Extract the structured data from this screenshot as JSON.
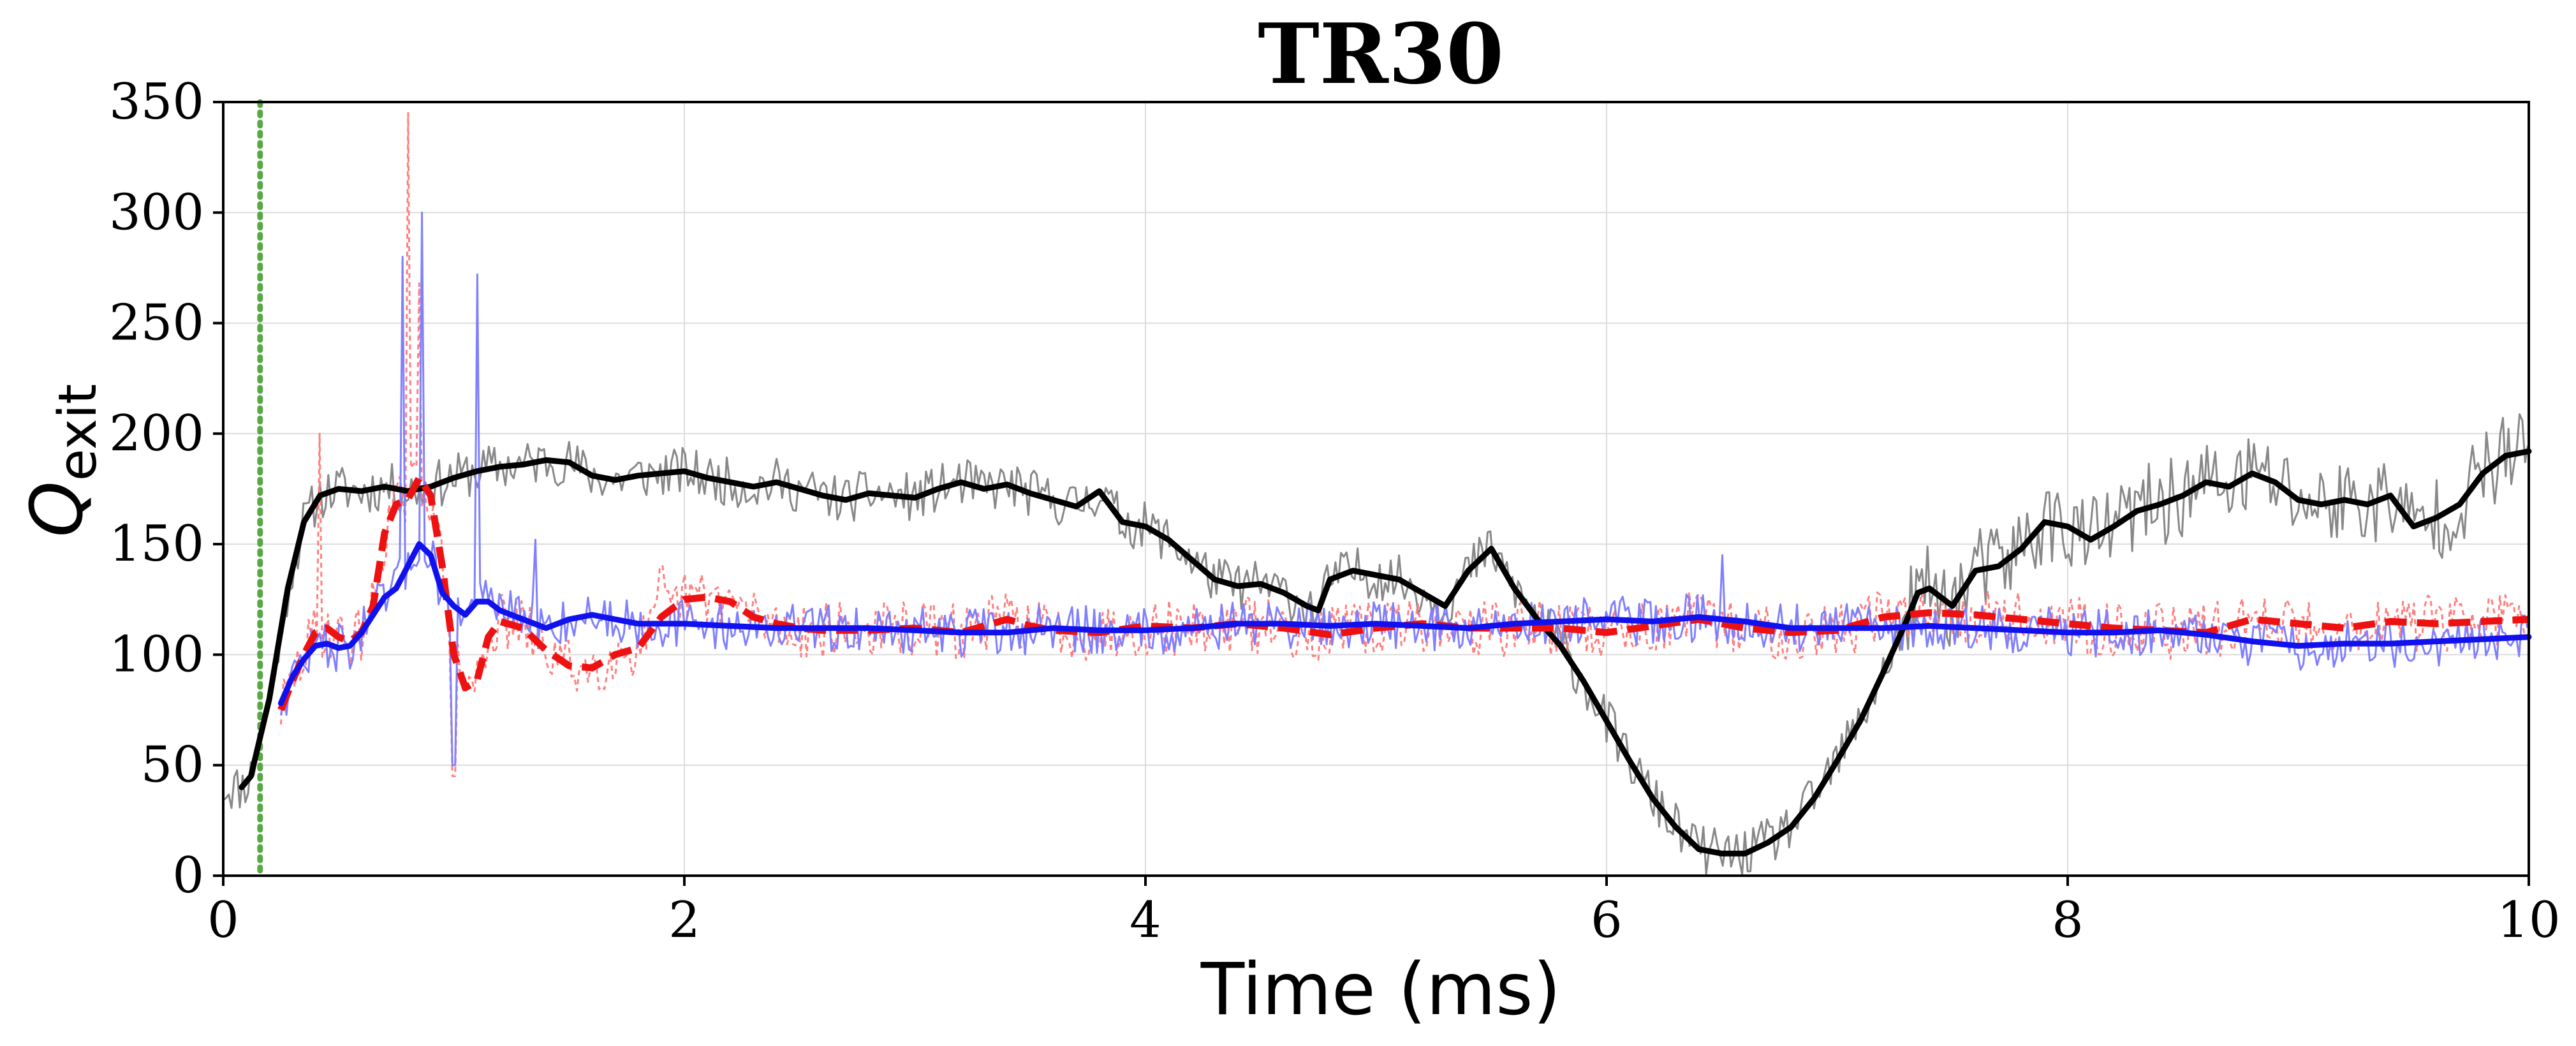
{
  "chart_data": {
    "type": "line",
    "title": "TR30",
    "xlabel": "Time (ms)",
    "ylabel_main": "Q",
    "ylabel_sub": "exit",
    "xlim": [
      0,
      10
    ],
    "ylim": [
      0,
      350
    ],
    "xticks": [
      0,
      2,
      4,
      6,
      8,
      10
    ],
    "yticks": [
      0,
      50,
      100,
      150,
      200,
      250,
      300,
      350
    ],
    "xtick_labels": [
      "0",
      "2",
      "4",
      "6",
      "8",
      "10"
    ],
    "ytick_labels": [
      "0",
      "50",
      "100",
      "150",
      "200",
      "250",
      "300",
      "350"
    ],
    "grid": true,
    "reference_line": {
      "x": 0.16,
      "color": "#5aa845",
      "style": "dotted"
    },
    "series": [
      {
        "color": "#000000",
        "style": "solid",
        "points": [
          [
            0.08,
            40
          ],
          [
            0.12,
            45
          ],
          [
            0.2,
            80
          ],
          [
            0.28,
            130
          ],
          [
            0.35,
            160
          ],
          [
            0.42,
            172
          ],
          [
            0.5,
            175
          ],
          [
            0.6,
            174
          ],
          [
            0.7,
            176
          ],
          [
            0.8,
            174
          ],
          [
            0.9,
            176
          ],
          [
            1.0,
            180
          ],
          [
            1.1,
            183
          ],
          [
            1.2,
            185
          ],
          [
            1.3,
            186
          ],
          [
            1.4,
            188
          ],
          [
            1.5,
            187
          ],
          [
            1.6,
            181
          ],
          [
            1.7,
            179
          ],
          [
            1.8,
            181
          ],
          [
            1.9,
            182
          ],
          [
            2.0,
            183
          ],
          [
            2.1,
            180
          ],
          [
            2.2,
            178
          ],
          [
            2.3,
            176
          ],
          [
            2.4,
            178
          ],
          [
            2.5,
            175
          ],
          [
            2.6,
            172
          ],
          [
            2.7,
            170
          ],
          [
            2.8,
            173
          ],
          [
            2.9,
            172
          ],
          [
            3.0,
            171
          ],
          [
            3.1,
            175
          ],
          [
            3.2,
            178
          ],
          [
            3.3,
            175
          ],
          [
            3.4,
            177
          ],
          [
            3.5,
            173
          ],
          [
            3.6,
            170
          ],
          [
            3.7,
            167
          ],
          [
            3.8,
            174
          ],
          [
            3.9,
            160
          ],
          [
            4.0,
            158
          ],
          [
            4.1,
            152
          ],
          [
            4.2,
            143
          ],
          [
            4.3,
            134
          ],
          [
            4.4,
            131
          ],
          [
            4.5,
            132
          ],
          [
            4.6,
            128
          ],
          [
            4.7,
            122
          ],
          [
            4.75,
            120
          ],
          [
            4.8,
            134
          ],
          [
            4.9,
            138
          ],
          [
            5.0,
            136
          ],
          [
            5.1,
            134
          ],
          [
            5.2,
            128
          ],
          [
            5.3,
            122
          ],
          [
            5.4,
            138
          ],
          [
            5.5,
            148
          ],
          [
            5.6,
            130
          ],
          [
            5.7,
            116
          ],
          [
            5.8,
            104
          ],
          [
            5.9,
            88
          ],
          [
            6.0,
            70
          ],
          [
            6.1,
            52
          ],
          [
            6.2,
            35
          ],
          [
            6.3,
            22
          ],
          [
            6.4,
            12
          ],
          [
            6.5,
            10
          ],
          [
            6.6,
            10
          ],
          [
            6.7,
            15
          ],
          [
            6.8,
            22
          ],
          [
            6.9,
            35
          ],
          [
            7.0,
            52
          ],
          [
            7.1,
            70
          ],
          [
            7.2,
            92
          ],
          [
            7.3,
            115
          ],
          [
            7.35,
            128
          ],
          [
            7.4,
            130
          ],
          [
            7.5,
            122
          ],
          [
            7.6,
            138
          ],
          [
            7.7,
            140
          ],
          [
            7.8,
            148
          ],
          [
            7.9,
            160
          ],
          [
            8.0,
            158
          ],
          [
            8.1,
            152
          ],
          [
            8.2,
            158
          ],
          [
            8.3,
            165
          ],
          [
            8.4,
            168
          ],
          [
            8.5,
            172
          ],
          [
            8.6,
            178
          ],
          [
            8.7,
            176
          ],
          [
            8.8,
            182
          ],
          [
            8.9,
            178
          ],
          [
            9.0,
            170
          ],
          [
            9.1,
            168
          ],
          [
            9.2,
            170
          ],
          [
            9.3,
            168
          ],
          [
            9.4,
            172
          ],
          [
            9.5,
            158
          ],
          [
            9.6,
            162
          ],
          [
            9.7,
            168
          ],
          [
            9.8,
            182
          ],
          [
            9.9,
            190
          ],
          [
            10.0,
            192
          ]
        ]
      },
      {
        "color": "#ee1111",
        "style": "dashed",
        "points": [
          [
            0.25,
            75
          ],
          [
            0.3,
            88
          ],
          [
            0.35,
            100
          ],
          [
            0.4,
            110
          ],
          [
            0.45,
            112
          ],
          [
            0.5,
            108
          ],
          [
            0.55,
            106
          ],
          [
            0.6,
            110
          ],
          [
            0.65,
            122
          ],
          [
            0.7,
            155
          ],
          [
            0.75,
            168
          ],
          [
            0.8,
            170
          ],
          [
            0.85,
            180
          ],
          [
            0.9,
            172
          ],
          [
            0.95,
            140
          ],
          [
            1.0,
            100
          ],
          [
            1.05,
            85
          ],
          [
            1.1,
            88
          ],
          [
            1.15,
            108
          ],
          [
            1.2,
            115
          ],
          [
            1.3,
            112
          ],
          [
            1.4,
            102
          ],
          [
            1.5,
            95
          ],
          [
            1.6,
            94
          ],
          [
            1.7,
            100
          ],
          [
            1.8,
            103
          ],
          [
            1.9,
            117
          ],
          [
            2.0,
            125
          ],
          [
            2.1,
            126
          ],
          [
            2.2,
            124
          ],
          [
            2.3,
            117
          ],
          [
            2.4,
            114
          ],
          [
            2.5,
            112
          ],
          [
            2.6,
            111
          ],
          [
            2.8,
            111
          ],
          [
            3.0,
            112
          ],
          [
            3.2,
            110
          ],
          [
            3.4,
            116
          ],
          [
            3.5,
            113
          ],
          [
            3.6,
            111
          ],
          [
            3.8,
            110
          ],
          [
            4.0,
            113
          ],
          [
            4.2,
            112
          ],
          [
            4.4,
            114
          ],
          [
            4.6,
            112
          ],
          [
            4.8,
            109
          ],
          [
            5.0,
            112
          ],
          [
            5.2,
            114
          ],
          [
            5.4,
            112
          ],
          [
            5.6,
            112
          ],
          [
            5.8,
            112
          ],
          [
            6.0,
            110
          ],
          [
            6.2,
            113
          ],
          [
            6.4,
            116
          ],
          [
            6.6,
            112
          ],
          [
            6.8,
            110
          ],
          [
            7.0,
            111
          ],
          [
            7.2,
            117
          ],
          [
            7.4,
            119
          ],
          [
            7.6,
            118
          ],
          [
            7.8,
            116
          ],
          [
            8.0,
            114
          ],
          [
            8.2,
            112
          ],
          [
            8.4,
            111
          ],
          [
            8.6,
            110
          ],
          [
            8.8,
            116
          ],
          [
            9.0,
            114
          ],
          [
            9.2,
            112
          ],
          [
            9.4,
            115
          ],
          [
            9.6,
            114
          ],
          [
            9.8,
            115
          ],
          [
            10.0,
            116
          ]
        ]
      },
      {
        "color": "#1111ee",
        "style": "solid",
        "points": [
          [
            0.25,
            78
          ],
          [
            0.3,
            90
          ],
          [
            0.35,
            98
          ],
          [
            0.4,
            104
          ],
          [
            0.45,
            105
          ],
          [
            0.5,
            103
          ],
          [
            0.55,
            104
          ],
          [
            0.6,
            110
          ],
          [
            0.65,
            118
          ],
          [
            0.7,
            126
          ],
          [
            0.75,
            130
          ],
          [
            0.8,
            140
          ],
          [
            0.85,
            150
          ],
          [
            0.9,
            145
          ],
          [
            0.95,
            128
          ],
          [
            1.0,
            122
          ],
          [
            1.05,
            118
          ],
          [
            1.1,
            124
          ],
          [
            1.15,
            124
          ],
          [
            1.2,
            120
          ],
          [
            1.3,
            116
          ],
          [
            1.4,
            112
          ],
          [
            1.5,
            116
          ],
          [
            1.6,
            118
          ],
          [
            1.7,
            116
          ],
          [
            1.8,
            114
          ],
          [
            1.9,
            114
          ],
          [
            2.0,
            114
          ],
          [
            2.2,
            113
          ],
          [
            2.4,
            112
          ],
          [
            2.6,
            112
          ],
          [
            2.8,
            112
          ],
          [
            3.0,
            111
          ],
          [
            3.2,
            110
          ],
          [
            3.4,
            110
          ],
          [
            3.6,
            112
          ],
          [
            3.8,
            111
          ],
          [
            4.0,
            111
          ],
          [
            4.2,
            112
          ],
          [
            4.4,
            114
          ],
          [
            4.6,
            114
          ],
          [
            4.8,
            113
          ],
          [
            5.0,
            114
          ],
          [
            5.2,
            113
          ],
          [
            5.4,
            112
          ],
          [
            5.6,
            114
          ],
          [
            5.8,
            115
          ],
          [
            6.0,
            116
          ],
          [
            6.2,
            115
          ],
          [
            6.4,
            117
          ],
          [
            6.6,
            115
          ],
          [
            6.8,
            112
          ],
          [
            7.0,
            112
          ],
          [
            7.2,
            112
          ],
          [
            7.4,
            113
          ],
          [
            7.6,
            112
          ],
          [
            7.8,
            111
          ],
          [
            8.0,
            110
          ],
          [
            8.2,
            110
          ],
          [
            8.4,
            111
          ],
          [
            8.6,
            109
          ],
          [
            8.8,
            106
          ],
          [
            9.0,
            104
          ],
          [
            9.2,
            105
          ],
          [
            9.4,
            105
          ],
          [
            9.6,
            106
          ],
          [
            9.8,
            107
          ],
          [
            10.0,
            108
          ]
        ]
      }
    ]
  }
}
